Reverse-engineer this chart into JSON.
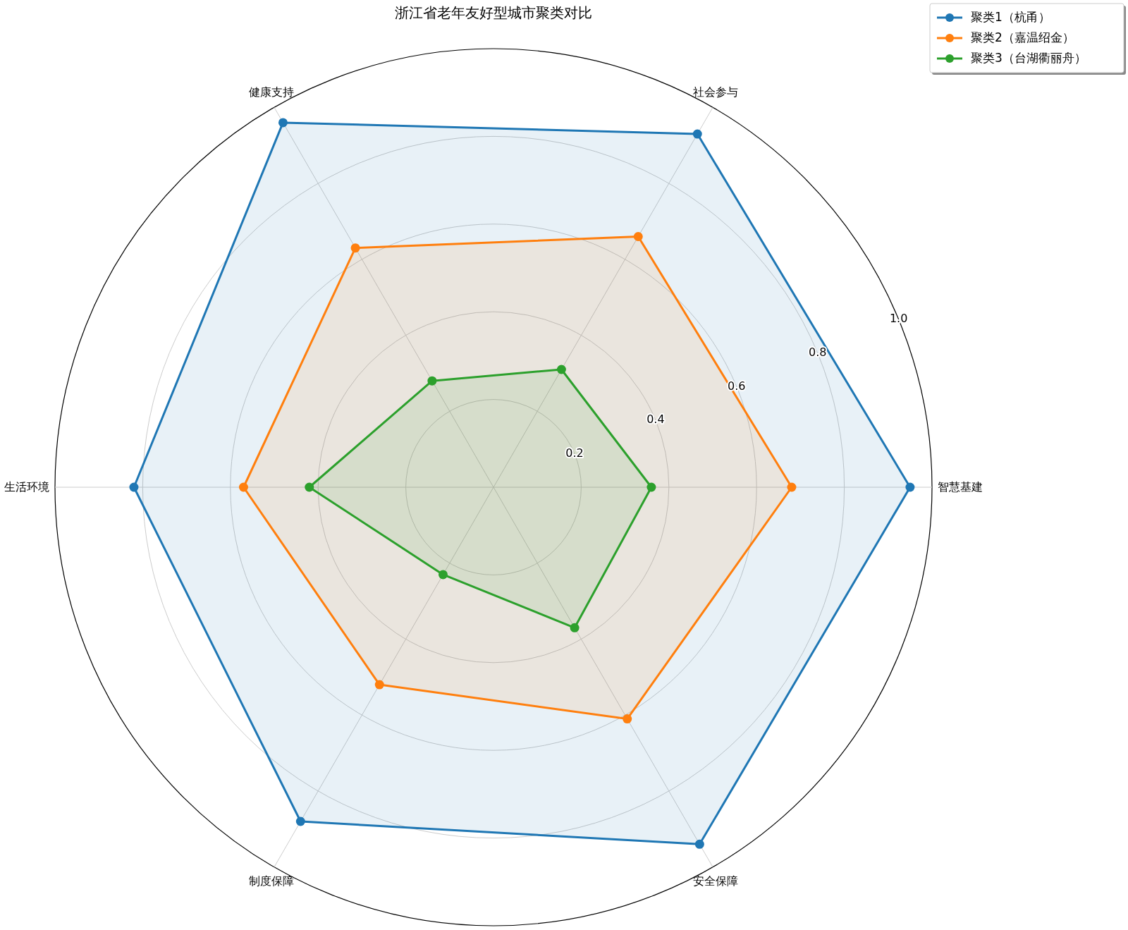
{
  "chart_data": {
    "type": "radar",
    "title": "浙江省老年友好型城市聚类对比",
    "categories": [
      "社会参与",
      "智慧基建",
      "安全保障",
      "制度保障",
      "生活环境",
      "健康支持"
    ],
    "ylim": [
      0,
      1
    ],
    "yticks": [
      0.2,
      0.4,
      0.6,
      {
        "value": 0.8,
        "label": "0.8"
      },
      {
        "value": 1,
        "label": "1.0"
      }
    ],
    "marker": "circle",
    "legend": "top right",
    "grid": true,
    "series": [
      {
        "name": "聚类1（杭甬）",
        "color": "#1f77b4",
        "values": [
          0.93,
          0.95,
          0.94,
          0.88,
          0.82,
          0.96
        ]
      },
      {
        "name": "聚类2（嘉温绍金）",
        "color": "#ff7f0e",
        "values": [
          0.66,
          0.68,
          0.61,
          0.52,
          0.57,
          0.63
        ]
      },
      {
        "name": "聚类3（台湖衢丽舟）",
        "color": "#2ca02c",
        "values": [
          0.31,
          0.36,
          0.37,
          0.23,
          0.42,
          0.28
        ]
      }
    ]
  }
}
